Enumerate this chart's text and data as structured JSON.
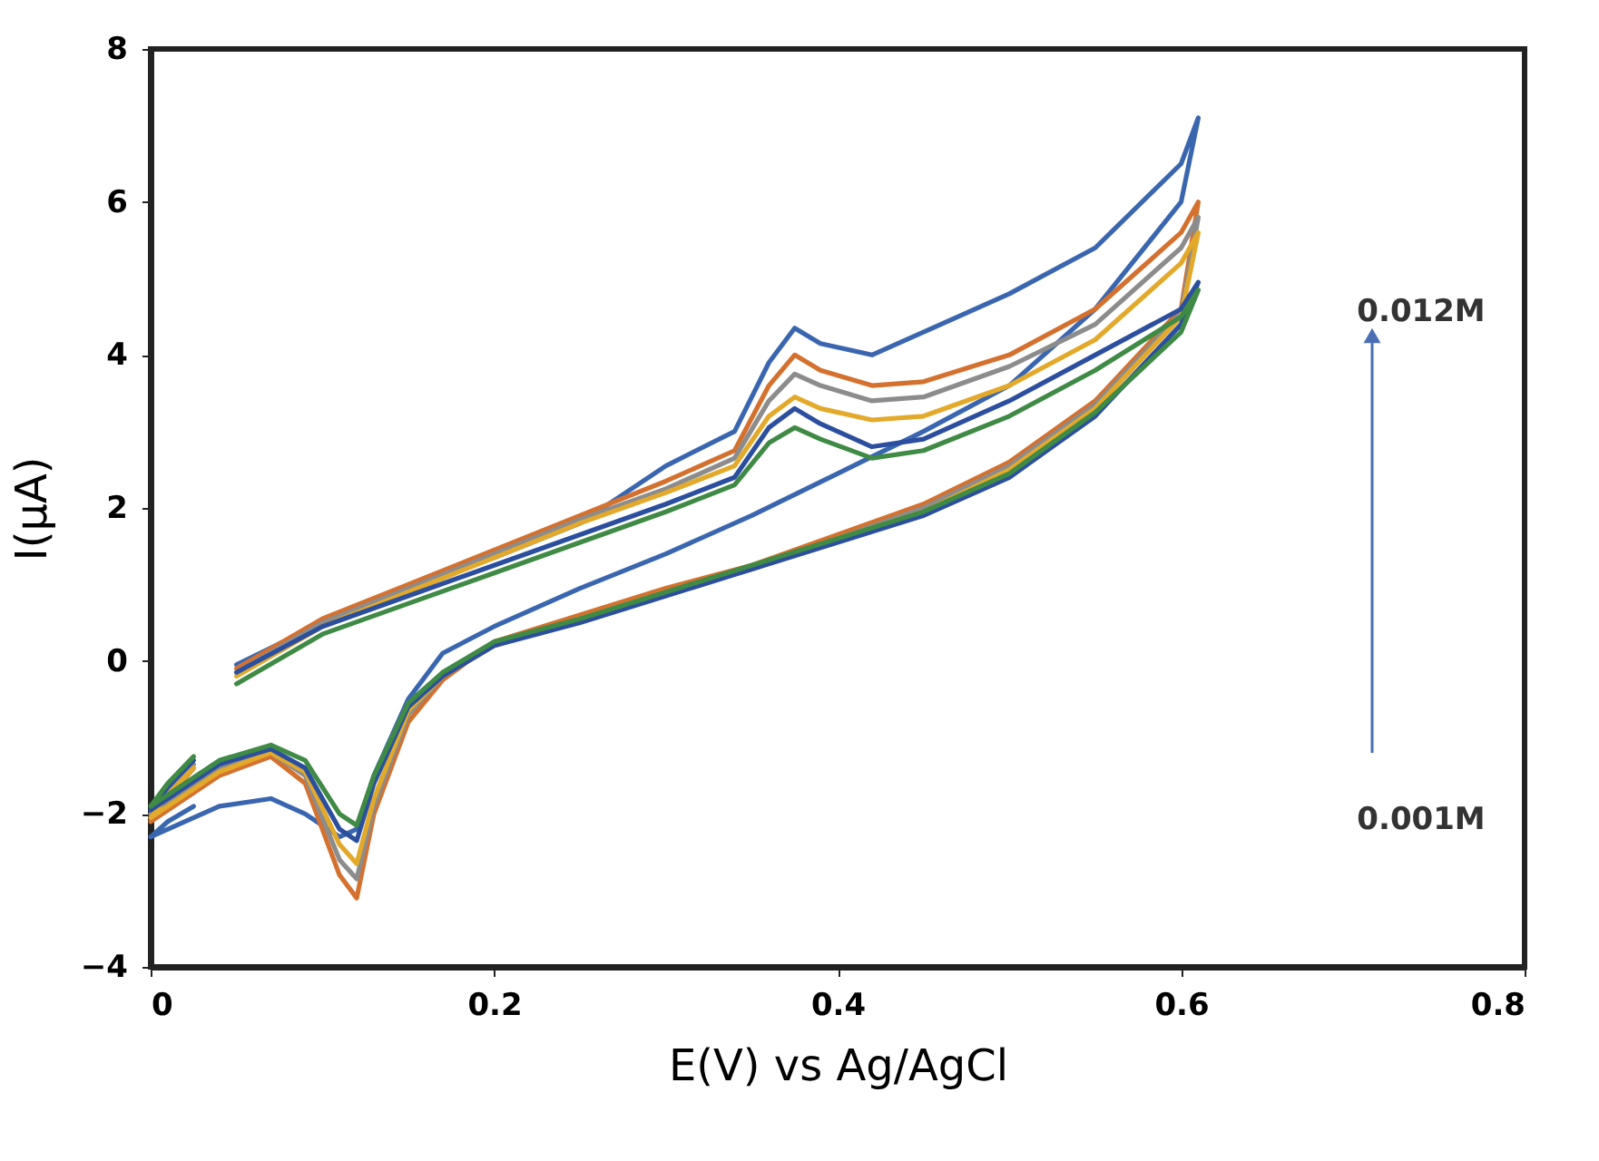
{
  "chart_data": {
    "type": "line",
    "xlabel": "E(V) vs Ag/AgCl",
    "ylabel": "I(μA)",
    "xlim": [
      0,
      0.8
    ],
    "ylim": [
      -4,
      8
    ],
    "xticks": [
      0,
      0.2,
      0.4,
      0.6,
      0.8
    ],
    "yticks": [
      -4,
      -2,
      0,
      2,
      4,
      6,
      8
    ],
    "grid": false,
    "legend": false,
    "marker": "none",
    "line_style": "solid",
    "annotations": [
      "0.012M",
      "0.001M"
    ],
    "series": [
      {
        "color": "#3a66b0",
        "x": [
          0.05,
          0.1,
          0.15,
          0.2,
          0.25,
          0.3,
          0.34,
          0.36,
          0.375,
          0.39,
          0.42,
          0.45,
          0.5,
          0.55,
          0.6,
          0.61,
          0.6,
          0.55,
          0.5,
          0.45,
          0.4,
          0.35,
          0.3,
          0.25,
          0.2,
          0.17,
          0.15,
          0.13,
          0.12,
          0.11,
          0.09,
          0.07,
          0.04,
          0.0,
          0.01,
          0.025
        ],
        "values": [
          -0.05,
          0.5,
          0.95,
          1.35,
          1.8,
          2.55,
          3.0,
          3.9,
          4.35,
          4.15,
          4.0,
          4.3,
          4.8,
          5.4,
          6.5,
          7.1,
          6.0,
          4.6,
          3.6,
          3.0,
          2.45,
          1.9,
          1.4,
          0.95,
          0.45,
          0.1,
          -0.5,
          -1.5,
          -2.2,
          -2.3,
          -2.0,
          -1.8,
          -1.9,
          -2.3,
          -2.1,
          -1.9
        ]
      },
      {
        "color": "#d4712f",
        "x": [
          0.05,
          0.1,
          0.15,
          0.2,
          0.25,
          0.3,
          0.34,
          0.36,
          0.375,
          0.39,
          0.42,
          0.45,
          0.5,
          0.55,
          0.6,
          0.61,
          0.6,
          0.55,
          0.5,
          0.45,
          0.4,
          0.35,
          0.3,
          0.25,
          0.2,
          0.17,
          0.15,
          0.13,
          0.12,
          0.11,
          0.09,
          0.07,
          0.04,
          0.0,
          0.01,
          0.025
        ],
        "values": [
          -0.1,
          0.55,
          1.0,
          1.45,
          1.9,
          2.35,
          2.75,
          3.6,
          4.0,
          3.8,
          3.6,
          3.65,
          4.0,
          4.6,
          5.6,
          6.0,
          4.6,
          3.4,
          2.6,
          2.05,
          1.65,
          1.25,
          0.95,
          0.6,
          0.25,
          -0.25,
          -0.8,
          -2.0,
          -3.1,
          -2.8,
          -1.6,
          -1.25,
          -1.5,
          -2.1,
          -1.8,
          -1.4
        ]
      },
      {
        "color": "#8c8c8c",
        "x": [
          0.05,
          0.1,
          0.15,
          0.2,
          0.25,
          0.3,
          0.34,
          0.36,
          0.375,
          0.39,
          0.42,
          0.45,
          0.5,
          0.55,
          0.6,
          0.61,
          0.6,
          0.55,
          0.5,
          0.45,
          0.4,
          0.35,
          0.3,
          0.25,
          0.2,
          0.17,
          0.15,
          0.13,
          0.12,
          0.11,
          0.09,
          0.07,
          0.04,
          0.0,
          0.01,
          0.025
        ],
        "values": [
          -0.15,
          0.5,
          0.95,
          1.4,
          1.85,
          2.25,
          2.65,
          3.4,
          3.75,
          3.6,
          3.4,
          3.45,
          3.85,
          4.4,
          5.4,
          5.8,
          4.55,
          3.35,
          2.55,
          2.0,
          1.6,
          1.2,
          0.9,
          0.55,
          0.2,
          -0.2,
          -0.7,
          -1.9,
          -2.85,
          -2.6,
          -1.5,
          -1.2,
          -1.4,
          -2.0,
          -1.7,
          -1.35
        ]
      },
      {
        "color": "#e3a92a",
        "x": [
          0.05,
          0.1,
          0.15,
          0.2,
          0.25,
          0.3,
          0.34,
          0.36,
          0.375,
          0.39,
          0.42,
          0.45,
          0.5,
          0.55,
          0.6,
          0.61,
          0.6,
          0.55,
          0.5,
          0.45,
          0.4,
          0.35,
          0.3,
          0.25,
          0.2,
          0.17,
          0.15,
          0.13,
          0.12,
          0.11,
          0.09,
          0.07,
          0.04,
          0.0,
          0.01,
          0.025
        ],
        "values": [
          -0.2,
          0.45,
          0.9,
          1.35,
          1.8,
          2.2,
          2.55,
          3.2,
          3.45,
          3.3,
          3.15,
          3.2,
          3.6,
          4.2,
          5.2,
          5.6,
          4.5,
          3.3,
          2.5,
          1.95,
          1.6,
          1.2,
          0.9,
          0.55,
          0.2,
          -0.2,
          -0.65,
          -1.8,
          -2.65,
          -2.4,
          -1.45,
          -1.2,
          -1.45,
          -2.05,
          -1.75,
          -1.4
        ]
      },
      {
        "color": "#2b4f9e",
        "x": [
          0.05,
          0.1,
          0.15,
          0.2,
          0.25,
          0.3,
          0.34,
          0.36,
          0.375,
          0.39,
          0.42,
          0.45,
          0.5,
          0.55,
          0.6,
          0.61,
          0.6,
          0.55,
          0.5,
          0.45,
          0.4,
          0.35,
          0.3,
          0.25,
          0.2,
          0.17,
          0.15,
          0.13,
          0.12,
          0.11,
          0.09,
          0.07,
          0.04,
          0.0,
          0.01,
          0.025
        ],
        "values": [
          -0.15,
          0.45,
          0.85,
          1.25,
          1.65,
          2.05,
          2.4,
          3.05,
          3.3,
          3.1,
          2.8,
          2.9,
          3.4,
          4.0,
          4.6,
          4.95,
          4.4,
          3.2,
          2.4,
          1.9,
          1.55,
          1.2,
          0.85,
          0.5,
          0.2,
          -0.2,
          -0.6,
          -1.6,
          -2.35,
          -2.2,
          -1.4,
          -1.15,
          -1.35,
          -1.95,
          -1.65,
          -1.3
        ]
      },
      {
        "color": "#3f8a45",
        "x": [
          0.05,
          0.1,
          0.15,
          0.2,
          0.25,
          0.3,
          0.34,
          0.36,
          0.375,
          0.39,
          0.42,
          0.45,
          0.5,
          0.55,
          0.6,
          0.61,
          0.6,
          0.55,
          0.5,
          0.45,
          0.4,
          0.35,
          0.3,
          0.25,
          0.2,
          0.17,
          0.15,
          0.13,
          0.12,
          0.11,
          0.09,
          0.07,
          0.04,
          0.0,
          0.01,
          0.025
        ],
        "values": [
          -0.3,
          0.35,
          0.75,
          1.15,
          1.55,
          1.95,
          2.3,
          2.85,
          3.05,
          2.9,
          2.65,
          2.75,
          3.2,
          3.8,
          4.5,
          4.85,
          4.3,
          3.25,
          2.45,
          1.95,
          1.6,
          1.25,
          0.9,
          0.55,
          0.25,
          -0.15,
          -0.55,
          -1.5,
          -2.15,
          -2.0,
          -1.3,
          -1.1,
          -1.3,
          -1.9,
          -1.6,
          -1.25
        ]
      }
    ]
  }
}
